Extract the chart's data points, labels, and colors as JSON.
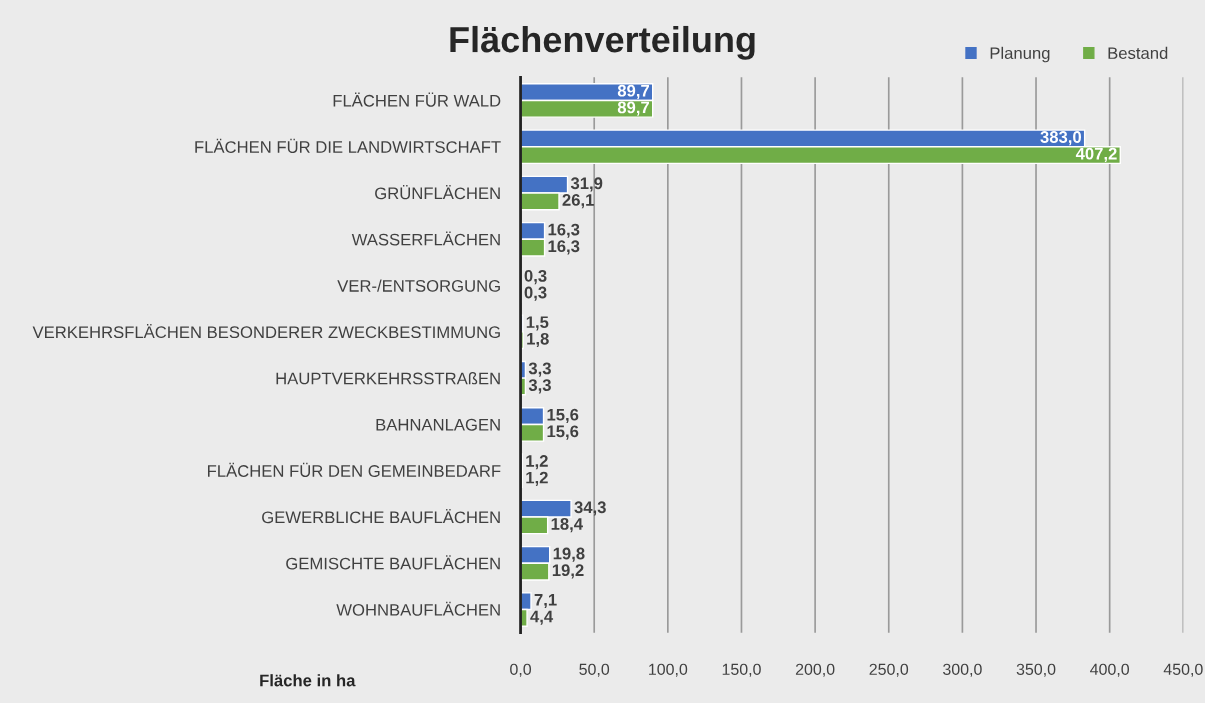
{
  "chart_data": {
    "type": "bar",
    "orientation": "horizontal",
    "title": "Flächenverteilung",
    "xlabel": "Fläche in ha",
    "categories": [
      "FLÄCHEN FÜR WALD",
      "FLÄCHEN FÜR DIE LANDWIRTSCHAFT",
      "GRÜNFLÄCHEN",
      "WASSERFLÄCHEN",
      "VER-/ENTSORGUNG",
      "VERKEHRSFLÄCHEN BESONDERER ZWECKBESTIMMUNG",
      "HAUPTVERKEHRSSTRAßEN",
      "BAHNANLAGEN",
      "FLÄCHEN FÜR DEN GEMEINBEDARF",
      "GEWERBLICHE BAUFLÄCHEN",
      "GEMISCHTE BAUFLÄCHEN",
      "WOHNBAUFLÄCHEN"
    ],
    "series": [
      {
        "name": "Planung",
        "color": "#4472c4",
        "values": [
          89.7,
          383.0,
          31.9,
          16.3,
          0.3,
          1.5,
          3.3,
          15.6,
          1.2,
          34.3,
          19.8,
          7.1
        ],
        "value_labels": [
          "89,7",
          "383,0",
          "31,9",
          "16,3",
          "0,3",
          "1,5",
          "3,3",
          "15,6",
          "1,2",
          "34,3",
          "19,8",
          "7,1"
        ]
      },
      {
        "name": "Bestand",
        "color": "#70ad47",
        "values": [
          89.7,
          407.2,
          26.1,
          16.3,
          0.3,
          1.8,
          3.3,
          15.6,
          1.2,
          18.4,
          19.2,
          4.4
        ],
        "value_labels": [
          "89,7",
          "407,2",
          "26,1",
          "16,3",
          "0,3",
          "1,8",
          "3,3",
          "15,6",
          "1,2",
          "18,4",
          "19,2",
          "4,4"
        ]
      }
    ],
    "xlim": [
      0,
      450
    ],
    "xticks": [
      {
        "value": 0,
        "label": "0,0"
      },
      {
        "value": 50,
        "label": "50,0"
      },
      {
        "value": 100,
        "label": "100,0"
      },
      {
        "value": 150,
        "label": "150,0"
      },
      {
        "value": 200,
        "label": "200,0"
      },
      {
        "value": 250,
        "label": "250,0"
      },
      {
        "value": 300,
        "label": "300,0"
      },
      {
        "value": 350,
        "label": "350,0"
      },
      {
        "value": 400,
        "label": "400,0"
      },
      {
        "value": 450,
        "label": "450,0"
      }
    ],
    "grid": "x",
    "legend": "top right"
  }
}
